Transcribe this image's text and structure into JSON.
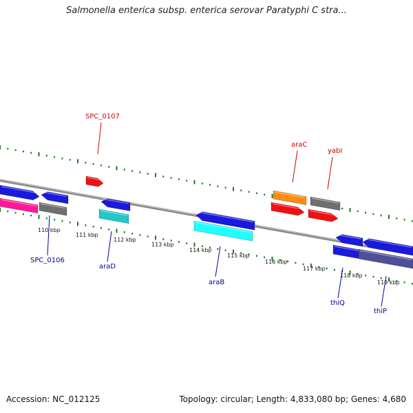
{
  "title": "Salmonella enterica subsp. enterica serovar Paratyphi C stra...",
  "footer": {
    "accession": "Accession: NC_012125",
    "topology": "Topology: circular; Length: 4,833,080 bp; Genes: 4,680"
  },
  "colors": {
    "backbone": "#8a8a8a",
    "forward_label": "#cc0000",
    "reverse_label": "#000099",
    "tick": "#1e7a1e",
    "blue": "#1a1adc",
    "gray": "#6f6f6f",
    "magenta": "#ff1a9a",
    "red": "#ee1111",
    "orange": "#ff8c10",
    "cyan": "#20ffff",
    "teal": "#20c8c8",
    "slate": "#4e4e9a"
  },
  "kbp_ticks": [
    "110 kbp",
    "111 kbp",
    "112 kbp",
    "113 kbp",
    "114 kbp",
    "115 kbp",
    "116 kbp",
    "117 kbp",
    "118 kbp",
    "119 kbp"
  ],
  "forward_labels": [
    {
      "text": "SPC_0107",
      "color_key": "forward_label"
    },
    {
      "text": "araC",
      "color_key": "forward_label"
    },
    {
      "text": "yabI",
      "color_key": "forward_label"
    }
  ],
  "reverse_labels": [
    {
      "text": "SPC_0106",
      "color_key": "reverse_label"
    },
    {
      "text": "araD",
      "color_key": "reverse_label"
    },
    {
      "text": "araB",
      "color_key": "reverse_label"
    },
    {
      "text": "thiQ",
      "color_key": "reverse_label"
    },
    {
      "text": "thiP",
      "color_key": "reverse_label"
    }
  ]
}
